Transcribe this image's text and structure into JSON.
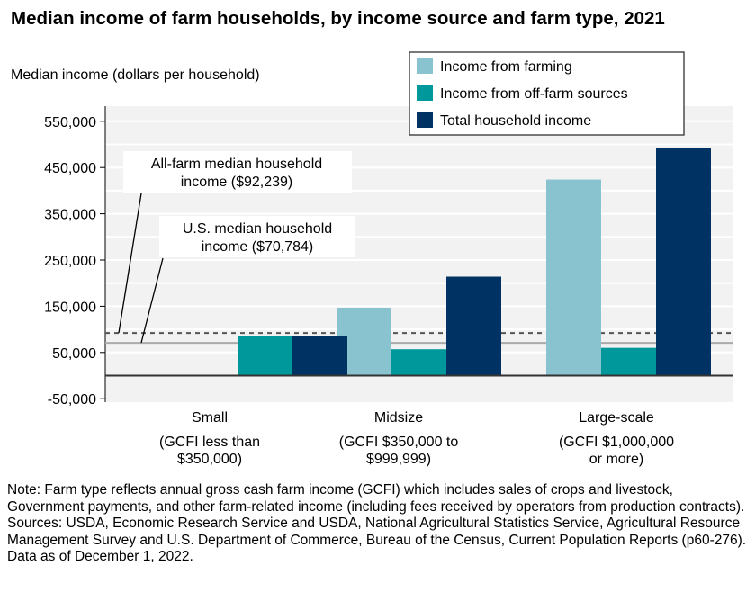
{
  "chart_data": {
    "type": "bar",
    "title": "Median income of farm households, by income source and farm type, 2021",
    "ylabel": "Median income (dollars per household)",
    "ylim": [
      -50000,
      550000
    ],
    "yticks": [
      -50000,
      50000,
      150000,
      250000,
      350000,
      450000,
      550000
    ],
    "ytick_labels": [
      "-50,000",
      "50,000",
      "150,000",
      "250,000",
      "350,000",
      "450,000",
      "550,000"
    ],
    "grid": true,
    "legend_placement": "top-right",
    "categories": [
      [
        "Small",
        "(GCFI less than",
        "$350,000)"
      ],
      [
        "Midsize",
        "(GCFI $350,000 to",
        "$999,999)"
      ],
      [
        "Large-scale",
        "(GCFI $1,000,000",
        "or more)"
      ]
    ],
    "series": [
      {
        "name": "Income from farming",
        "color": "#88c3cf",
        "values": [
          0,
          147000,
          424000
        ]
      },
      {
        "name": "Income from off-farm sources",
        "color": "#00989a",
        "values": [
          86000,
          57000,
          60000
        ]
      },
      {
        "name": "Total household income",
        "color": "#003263",
        "values": [
          86000,
          214000,
          493000
        ]
      }
    ],
    "reference_lines": [
      {
        "label": [
          "All-farm median household",
          "income ($92,239)"
        ],
        "value": 92239,
        "style": "dashed"
      },
      {
        "label": [
          "U.S. median household",
          "income ($70,784)"
        ],
        "value": 70784,
        "style": "solid"
      }
    ]
  },
  "note": "Note: Farm type reflects annual gross cash farm income (GCFI) which includes sales of crops and livestock, Government payments, and other farm-related income (including fees received by operators from production contracts).",
  "sources": "Sources: USDA, Economic Research Service and USDA, National Agricultural Statistics Service, Agricultural Resource Management Survey and U.S. Department of Commerce, Bureau of the Census, Current Population Reports (p60-276). Data as of December 1, 2022."
}
